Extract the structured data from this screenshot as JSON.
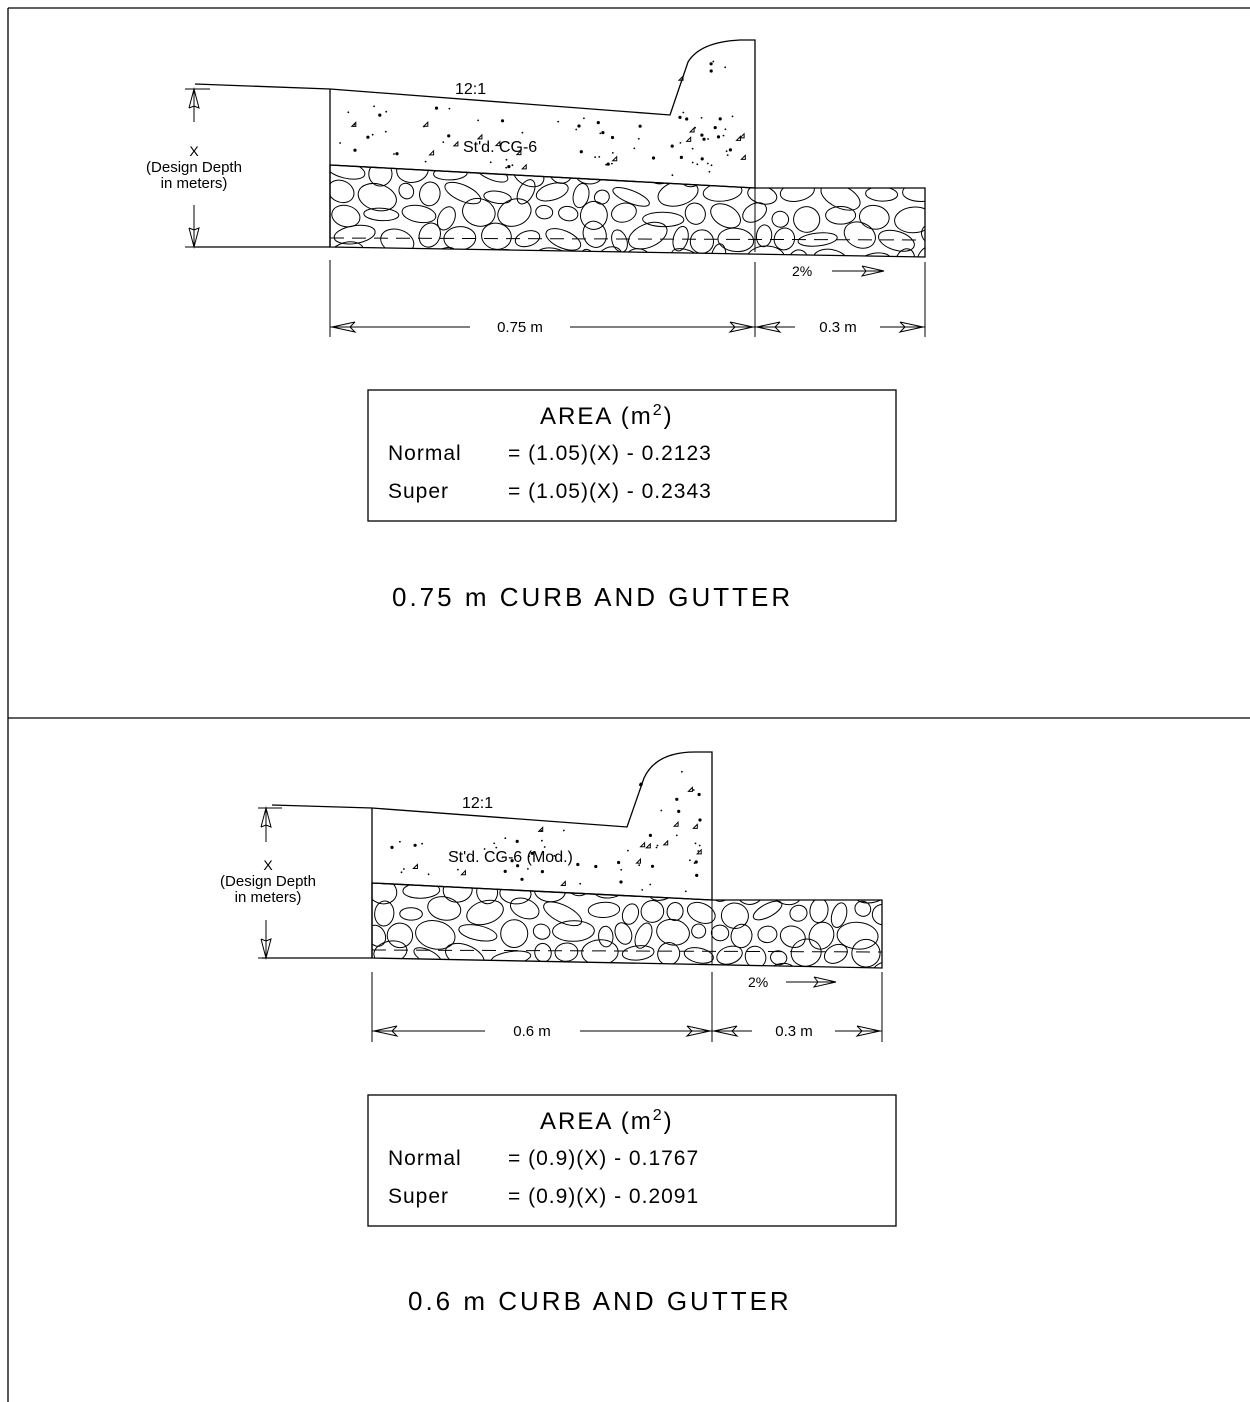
{
  "panels": [
    {
      "slope_label": "12:1",
      "depth_label_1": "X",
      "depth_label_2": "(Design Depth",
      "depth_label_3": "in meters)",
      "material_label": "St'd. CG-6",
      "gutter_width": "0.75 m",
      "offset_width": "0.3 m",
      "cross_slope": "2%",
      "area_title": "AREA (m",
      "area_title_sup": "2",
      "area_title_close": ")",
      "normal_label": "Normal",
      "normal_formula": "= (1.05)(X) - 0.2123",
      "super_label": "Super",
      "super_formula": "= (1.05)(X) - 0.2343",
      "caption": "0.75 m CURB AND GUTTER"
    },
    {
      "slope_label": "12:1",
      "depth_label_1": "X",
      "depth_label_2": "(Design Depth",
      "depth_label_3": "in meters)",
      "material_label": "St'd. CG-6 (Mod.)",
      "gutter_width": "0.6 m",
      "offset_width": "0.3 m",
      "cross_slope": "2%",
      "area_title": "AREA (m",
      "area_title_sup": "2",
      "area_title_close": ")",
      "normal_label": "Normal",
      "normal_formula": "= (0.9)(X) - 0.1767",
      "super_label": "Super",
      "super_formula": "= (0.9)(X) - 0.2091",
      "caption": "0.6 m CURB AND GUTTER"
    }
  ]
}
